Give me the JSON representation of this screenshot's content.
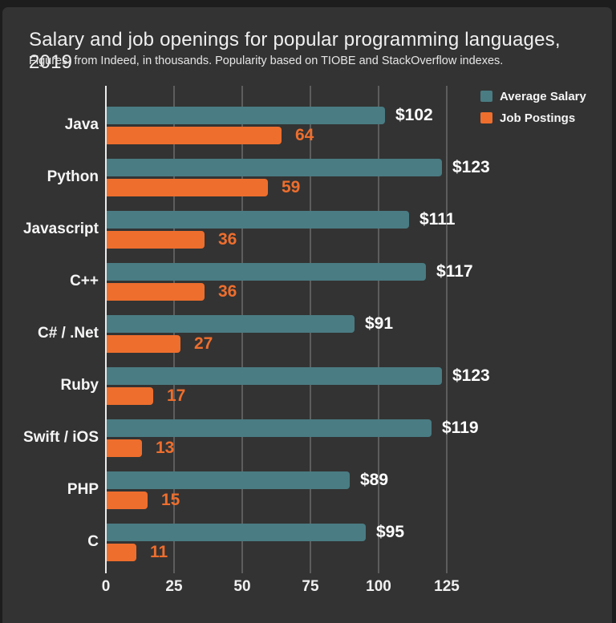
{
  "window": {
    "frame_color": "#1d1d1d",
    "background_color": "#333333"
  },
  "header": {
    "title": "Salary and job openings for popular programming languages, 2019",
    "subtitle": "Figures, from Indeed, in thousands. Popularity based on TIOBE and StackOverflow indexes."
  },
  "legend": {
    "position": "top-right",
    "items": [
      {
        "label": "Average Salary",
        "color": "#4a7c83"
      },
      {
        "label": "Job Postings",
        "color": "#ee6e2d"
      }
    ]
  },
  "chart_data": {
    "type": "bar",
    "orientation": "horizontal",
    "title": "Salary and job openings for popular programming languages, 2019",
    "subtitle": "Figures, from Indeed, in thousands. Popularity based on TIOBE and StackOverflow indexes.",
    "categories": [
      "Java",
      "Python",
      "Javascript",
      "C++",
      "C# / .Net",
      "Ruby",
      "Swift / iOS",
      "PHP",
      "C"
    ],
    "series": [
      {
        "name": "Average Salary",
        "color": "#4a7c83",
        "values": [
          102,
          123,
          111,
          117,
          91,
          123,
          119,
          89,
          95
        ],
        "data_labels": [
          "$102",
          "$123",
          "$111",
          "$117",
          "$91",
          "$123",
          "$119",
          "$89",
          "$95"
        ],
        "label_color": "#ffffff"
      },
      {
        "name": "Job Postings",
        "color": "#ee6e2d",
        "values": [
          64,
          59,
          36,
          36,
          27,
          17,
          13,
          15,
          11
        ],
        "data_labels": [
          "64",
          "59",
          "36",
          "36",
          "27",
          "17",
          "13",
          "15",
          "11"
        ],
        "label_color": "#ee6e2d"
      }
    ],
    "x_ticks": [
      0,
      25,
      50,
      75,
      100,
      125
    ],
    "xlim": [
      0,
      160
    ],
    "grid": "vertical-gridlines",
    "gridline_color": "#5d5d5d",
    "axis_line_color": "#ececec",
    "text_color": "#f5f5f5"
  }
}
